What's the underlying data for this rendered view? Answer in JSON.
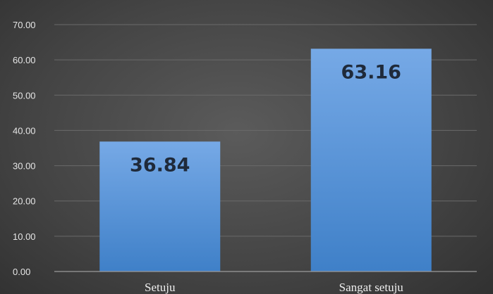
{
  "chart_data": {
    "type": "bar",
    "title": "",
    "xlabel": "",
    "ylabel": "",
    "categories": [
      "Setuju",
      "Sangat setuju"
    ],
    "values": [
      36.84,
      63.16
    ],
    "value_labels": [
      "36.84",
      "63.16"
    ],
    "ylim": [
      0,
      70
    ],
    "y_ticks": [
      0,
      10,
      20,
      30,
      40,
      50,
      60,
      70
    ],
    "y_tick_labels": [
      "0.00",
      "10.00",
      "20.00",
      "30.00",
      "40.00",
      "50.00",
      "60.00",
      "70.00"
    ],
    "grid": true,
    "legend": "none",
    "colors": {
      "bar_top": "#76a9e6",
      "bar_bottom": "#3f80c8",
      "gridline": "#6a6a6a",
      "axis": "#9a9a9a",
      "label_text": "#1f2a3a",
      "tick_text": "#e6e6e6"
    }
  }
}
